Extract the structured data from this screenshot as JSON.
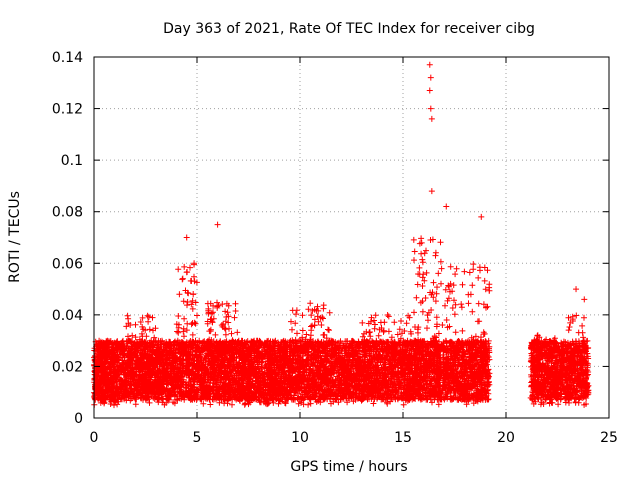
{
  "chart_data": {
    "type": "scatter",
    "title": "Day 363 of 2021, Rate Of TEC Index for receiver cibg",
    "xlabel": "GPS time / hours",
    "ylabel": "ROTI / TECUs",
    "xlim": [
      0,
      25
    ],
    "ylim": [
      0,
      0.14
    ],
    "x_ticks": [
      "0",
      "5",
      "10",
      "15",
      "20",
      "25"
    ],
    "y_ticks": [
      "0",
      "0.02",
      "0.04",
      "0.06",
      "0.08",
      "0.1",
      "0.12",
      "0.14"
    ],
    "grid": true,
    "marker": "+",
    "color": "#ff0000",
    "series": [
      {
        "name": "ROTI",
        "profile_note": "dense band of samples from 0 to 19.2 h and from 21.2 to 24 h; no data between 19.2 and 21.2 h",
        "segments": [
          {
            "x_range": [
              0.0,
              19.2
            ],
            "typical_range": [
              0.005,
              0.03
            ]
          },
          {
            "x_range": [
              21.2,
              24.0
            ],
            "typical_range": [
              0.005,
              0.03
            ]
          }
        ],
        "peaks": [
          {
            "x": 4.5,
            "y": 0.07
          },
          {
            "x": 6.0,
            "y": 0.075
          },
          {
            "x": 16.3,
            "y": 0.137
          },
          {
            "x": 16.35,
            "y": 0.132
          },
          {
            "x": 16.3,
            "y": 0.127
          },
          {
            "x": 16.35,
            "y": 0.12
          },
          {
            "x": 16.4,
            "y": 0.116
          },
          {
            "x": 16.4,
            "y": 0.088
          },
          {
            "x": 17.1,
            "y": 0.082
          },
          {
            "x": 18.8,
            "y": 0.078
          },
          {
            "x": 23.4,
            "y": 0.05
          },
          {
            "x": 23.8,
            "y": 0.046
          }
        ]
      }
    ]
  }
}
